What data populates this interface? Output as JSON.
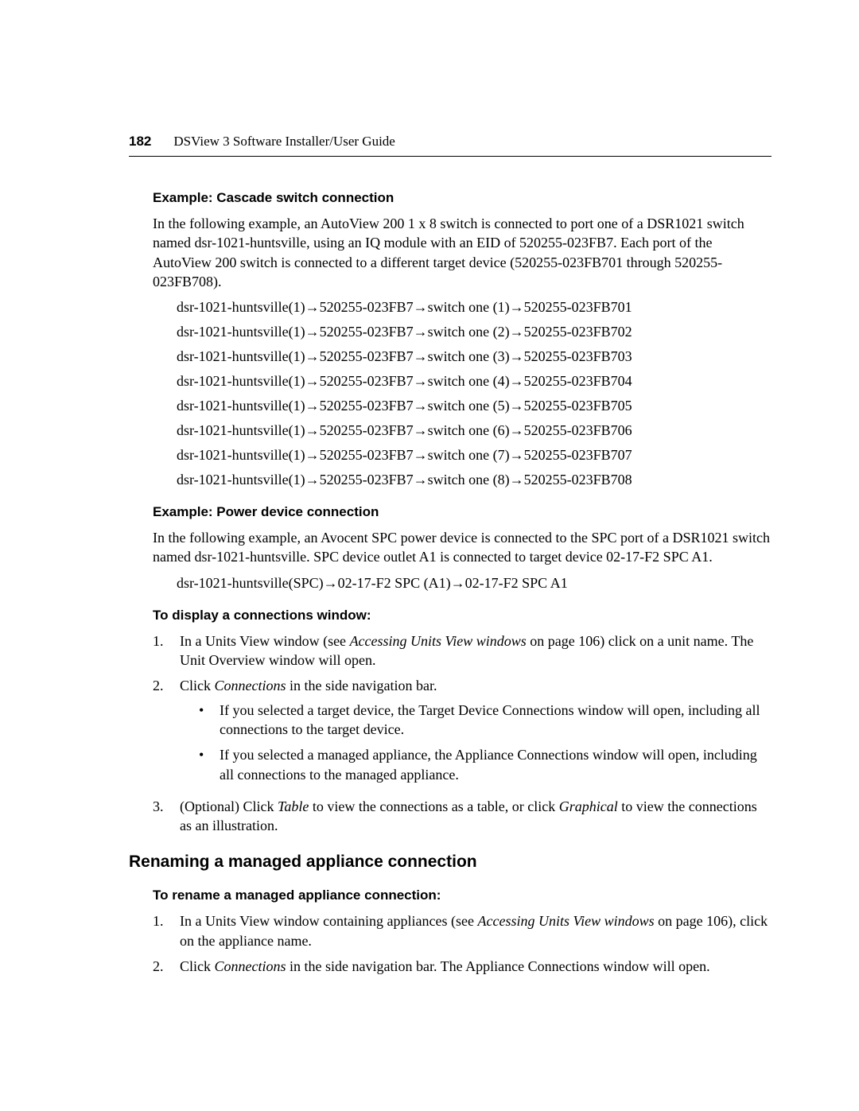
{
  "header": {
    "page_number": "182",
    "title": "DSView 3 Software Installer/User Guide"
  },
  "section1": {
    "heading": "Example: Cascade switch connection",
    "intro": "In the following example, an AutoView 200 1 x 8 switch is connected to port one of a DSR1021 switch named dsr-1021-huntsville, using an IQ module with an EID of 520255-023FB7. Each port of the AutoView 200 switch is connected to a different target device (520255-023FB701 through 520255-023FB708).",
    "lines": [
      {
        "a": "dsr-1021-huntsville(1)",
        "b": "520255-023FB7",
        "c": "switch one (1)",
        "d": "520255-023FB701"
      },
      {
        "a": "dsr-1021-huntsville(1)",
        "b": "520255-023FB7",
        "c": "switch one (2)",
        "d": "520255-023FB702"
      },
      {
        "a": "dsr-1021-huntsville(1)",
        "b": "520255-023FB7",
        "c": "switch one (3)",
        "d": "520255-023FB703"
      },
      {
        "a": "dsr-1021-huntsville(1)",
        "b": "520255-023FB7",
        "c": "switch one (4)",
        "d": "520255-023FB704"
      },
      {
        "a": "dsr-1021-huntsville(1)",
        "b": "520255-023FB7",
        "c": "switch one (5)",
        "d": "520255-023FB705"
      },
      {
        "a": "dsr-1021-huntsville(1)",
        "b": "520255-023FB7",
        "c": "switch one (6)",
        "d": "520255-023FB706"
      },
      {
        "a": "dsr-1021-huntsville(1)",
        "b": "520255-023FB7",
        "c": "switch one (7)",
        "d": "520255-023FB707"
      },
      {
        "a": "dsr-1021-huntsville(1)",
        "b": "520255-023FB7",
        "c": "switch one (8)",
        "d": "520255-023FB708"
      }
    ]
  },
  "section2": {
    "heading": "Example: Power device connection",
    "intro": "In the following example, an Avocent SPC power device is connected to the SPC port of a DSR1021 switch named dsr-1021-huntsville. SPC device outlet A1 is connected to target device 02-17-F2 SPC A1.",
    "line": {
      "a": "dsr-1021-huntsville(SPC)",
      "b": "02-17-F2 SPC (A1)",
      "c": "02-17-F2 SPC A1"
    }
  },
  "section3": {
    "heading": "To display a connections window:",
    "step1_pre": "In a Units View window (see ",
    "step1_it": "Accessing Units View windows",
    "step1_post": " on page 106) click on a unit name. The Unit Overview window will open.",
    "step2_pre": "Click ",
    "step2_it": "Connections",
    "step2_post": " in the side navigation bar.",
    "bullet1": "If you selected a target device, the Target Device Connections window will open, including all connections to the target device.",
    "bullet2": "If you selected a managed appliance, the Appliance Connections window will open, including all connections to the managed appliance.",
    "step3_pre": "(Optional) Click ",
    "step3_it1": "Table",
    "step3_mid": " to view the connections as a table, or click ",
    "step3_it2": "Graphical",
    "step3_post": " to view the connections as an illustration."
  },
  "section4": {
    "heading": "Renaming a managed appliance connection",
    "sub": "To rename a managed appliance connection:",
    "step1_pre": "In a Units View window containing appliances (see ",
    "step1_it": "Accessing Units View windows",
    "step1_post": " on page 106), click on the appliance name.",
    "step2_pre": "Click ",
    "step2_it": "Connections",
    "step2_post": " in the side navigation bar. The Appliance Connections window will open."
  }
}
